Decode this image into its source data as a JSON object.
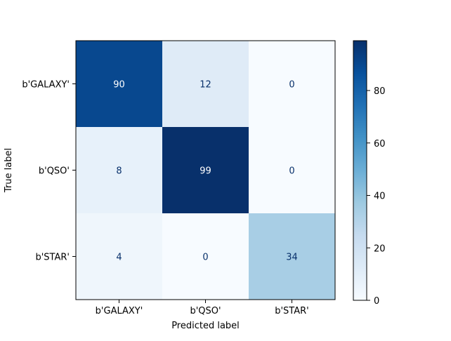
{
  "chart_data": {
    "type": "heatmap",
    "title": "",
    "xlabel": "Predicted label",
    "ylabel": "True label",
    "x_categories": [
      "b'GALAXY'",
      "b'QSO'",
      "b'STAR'"
    ],
    "y_categories": [
      "b'GALAXY'",
      "b'QSO'",
      "b'STAR'"
    ],
    "matrix": [
      [
        90,
        12,
        0
      ],
      [
        8,
        99,
        0
      ],
      [
        4,
        0,
        34
      ]
    ],
    "colormap": "Blues",
    "color_range": [
      0,
      99
    ],
    "colorbar_ticks": [
      0,
      20,
      40,
      60,
      80
    ],
    "grid": false,
    "text_color_light": "#ffffff",
    "text_color_dark": "#08306b"
  }
}
